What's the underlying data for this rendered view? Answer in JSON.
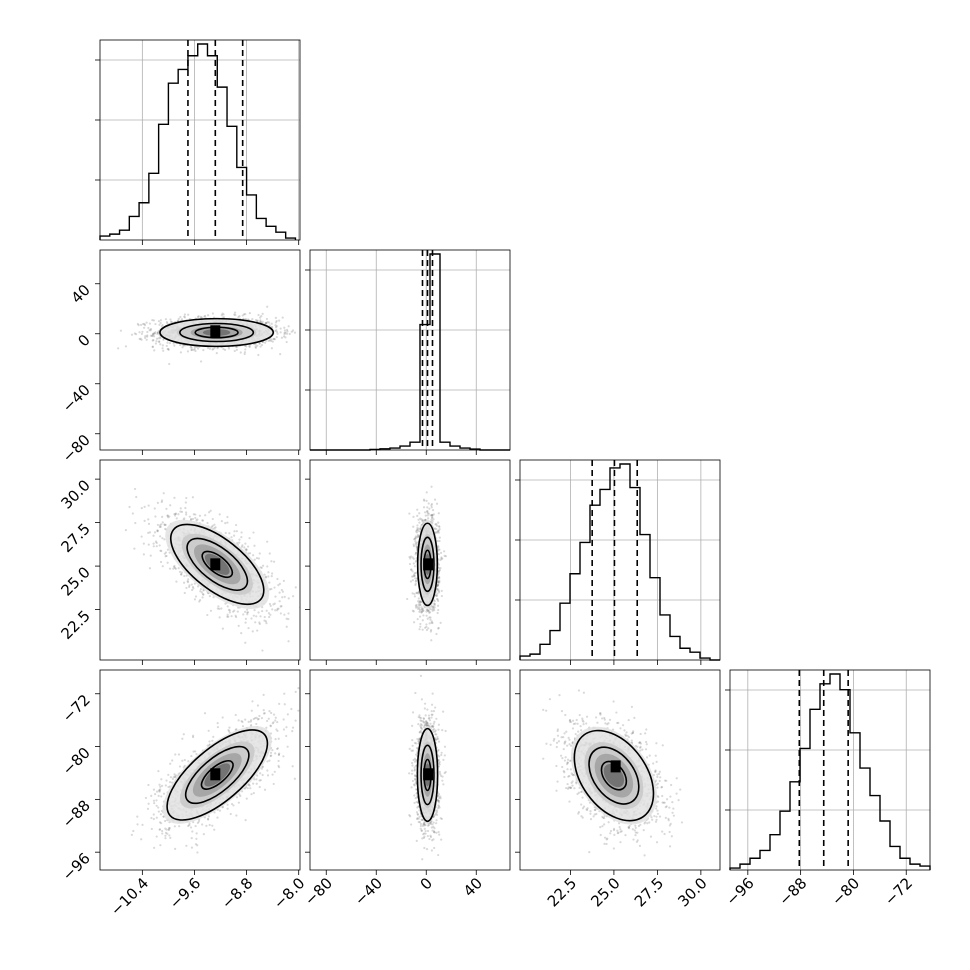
{
  "figure": {
    "type": "corner",
    "n_params": 4,
    "colors": {
      "line": "#000000",
      "grid": "#b0b0b0",
      "points": "#777777"
    }
  },
  "chart_data": {
    "type": "corner",
    "params": [
      {
        "range": [
          -11.05,
          -7.98
        ],
        "ticks": [
          -10.4,
          -9.6,
          -8.8,
          -8.0
        ],
        "tick_labels": [
          "−10.4",
          "−9.6",
          "−8.8",
          "−8.0"
        ],
        "quantiles": [
          -9.7,
          -9.28,
          -8.86
        ],
        "hist_bins": [
          -11.05,
          -10.9,
          -10.75,
          -10.6,
          -10.45,
          -10.3,
          -10.15,
          -10.0,
          -9.85,
          -9.7,
          -9.55,
          -9.4,
          -9.25,
          -9.1,
          -8.95,
          -8.8,
          -8.65,
          -8.5,
          -8.35,
          -8.2,
          -8.05
        ],
        "hist_counts": [
          2,
          3,
          5,
          12,
          19,
          34,
          59,
          80,
          87,
          94,
          100,
          94,
          78,
          58,
          37,
          23,
          11,
          7,
          4,
          1
        ]
      },
      {
        "range": [
          -93,
          67
        ],
        "ticks": [
          -80,
          -40,
          0,
          40
        ],
        "tick_labels": [
          "−80",
          "−40",
          "0",
          "40"
        ],
        "quantiles": [
          -3,
          1,
          5
        ],
        "hist_bins": [
          -93,
          -85,
          -77,
          -69,
          -61,
          -53,
          -45,
          -37,
          -29,
          -21,
          -13,
          -5,
          3,
          11,
          19,
          27,
          35,
          43,
          51,
          59,
          67
        ],
        "hist_counts": [
          0,
          0,
          0,
          0,
          0,
          0,
          0.3,
          0.6,
          1,
          2,
          4,
          64,
          100,
          4,
          2,
          1,
          0.5,
          0,
          0,
          0
        ]
      },
      {
        "range": [
          19.6,
          31.1
        ],
        "ticks": [
          22.5,
          25.0,
          27.5,
          30.0
        ],
        "tick_labels": [
          "22.5",
          "25.0",
          "27.5",
          "30.0"
        ],
        "quantiles": [
          23.75,
          25.03,
          26.34
        ],
        "hist_bins": [
          19.6,
          20.175,
          20.75,
          21.325,
          21.9,
          22.475,
          23.05,
          23.625,
          24.2,
          24.775,
          25.35,
          25.925,
          26.5,
          27.075,
          27.65,
          28.225,
          28.8,
          29.375,
          29.95,
          30.525,
          31.1
        ],
        "hist_counts": [
          2,
          3,
          8,
          15,
          29,
          44,
          60,
          79,
          87,
          98,
          100,
          88,
          64,
          42,
          23,
          12,
          6,
          4,
          1,
          0
        ]
      },
      {
        "range": [
          -98.7,
          -68.4
        ],
        "ticks": [
          -96,
          -88,
          -80,
          -72
        ],
        "tick_labels": [
          "−96",
          "−88",
          "−80",
          "−72"
        ],
        "quantiles": [
          -88.2,
          -84.5,
          -80.8
        ],
        "hist_bins": [
          -98.7,
          -97.185,
          -95.67,
          -94.155,
          -92.64,
          -91.125,
          -89.61,
          -88.095,
          -86.58,
          -85.065,
          -83.55,
          -82.035,
          -80.52,
          -79.005,
          -77.49,
          -75.975,
          -74.46,
          -72.945,
          -71.43,
          -69.915,
          -68.4
        ],
        "hist_counts": [
          1,
          3,
          6,
          10,
          18,
          30,
          45,
          62,
          82,
          95,
          100,
          92,
          70,
          52,
          38,
          25,
          12,
          6,
          3,
          2
        ]
      }
    ],
    "pairs": [
      {
        "x": 0,
        "y": 1,
        "ylim": [
          -93,
          67
        ],
        "ylabel_ticks": [
          -80,
          -40,
          0,
          40
        ],
        "ylabel_texts": [
          "−80",
          "−40",
          "0",
          "40"
        ],
        "mean": [
          -9.26,
          1
        ],
        "sd": [
          0.47,
          6
        ],
        "rho": 0.0,
        "contour_scale": [
          0.7,
          1.2,
          1.85
        ],
        "peak": [
          -9.28,
          2
        ]
      },
      {
        "x": 0,
        "y": 2,
        "ylim": [
          19.6,
          31.1
        ],
        "ylabel_ticks": [
          22.5,
          25.0,
          27.5,
          30.0
        ],
        "ylabel_texts": [
          "22.5",
          "25.0",
          "27.5",
          "30.0"
        ],
        "mean": [
          -9.25,
          25.1
        ],
        "sd": [
          0.42,
          1.35
        ],
        "rho": -0.65,
        "contour_scale": [
          0.55,
          1.1,
          1.7
        ],
        "peak": [
          -9.28,
          25.1
        ]
      },
      {
        "x": 1,
        "y": 2,
        "mean": [
          1,
          25.1
        ],
        "sd": [
          4.5,
          1.35
        ],
        "rho": 0.0,
        "contour_scale": [
          0.6,
          1.15,
          1.75
        ],
        "peak": [
          1.5,
          25.1
        ]
      },
      {
        "x": 0,
        "y": 3,
        "ylim": [
          -98.7,
          -68.4
        ],
        "ylabel_ticks": [
          -96,
          -88,
          -80,
          -72
        ],
        "ylabel_texts": [
          "−96",
          "−88",
          "−80",
          "−72"
        ],
        "mean": [
          -9.25,
          -84.3
        ],
        "sd": [
          0.44,
          3.9
        ],
        "rho": 0.7,
        "contour_scale": [
          0.55,
          1.1,
          1.75
        ],
        "peak": [
          -9.28,
          -84.2
        ]
      },
      {
        "x": 1,
        "y": 3,
        "mean": [
          1,
          -84.3
        ],
        "sd": [
          4.5,
          3.9
        ],
        "rho": 0.0,
        "contour_scale": [
          0.6,
          1.15,
          1.8
        ],
        "peak": [
          1.5,
          -84.2
        ]
      },
      {
        "x": 2,
        "y": 3,
        "mean": [
          25.0,
          -84.4
        ],
        "sd": [
          1.3,
          3.9
        ],
        "rho": -0.4,
        "contour_scale": [
          0.55,
          1.1,
          1.75
        ],
        "peak": [
          25.1,
          -83.0
        ]
      }
    ],
    "grid": true
  }
}
